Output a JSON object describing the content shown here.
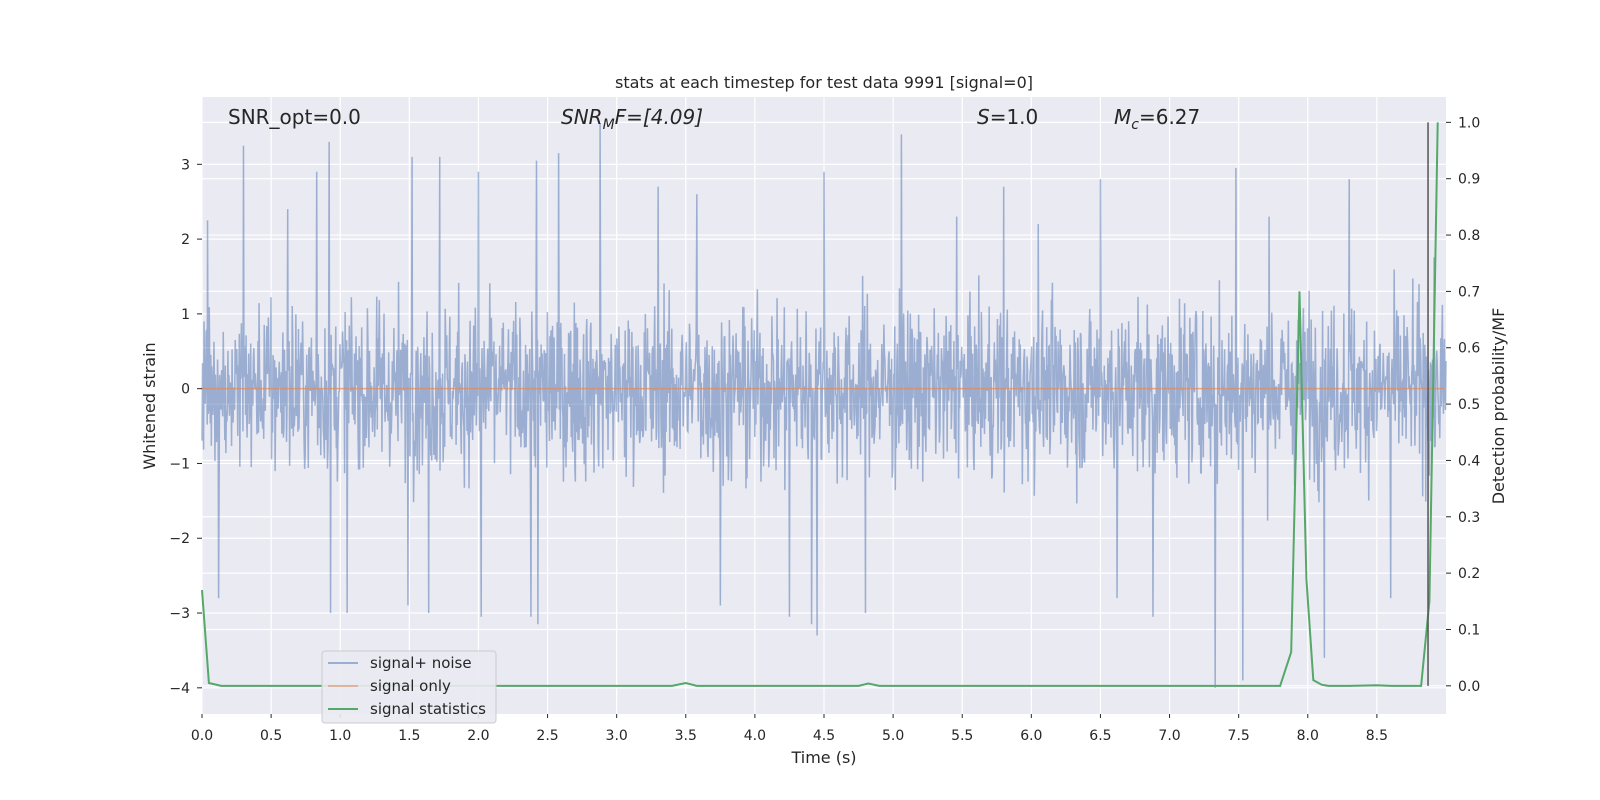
{
  "chart_data": {
    "type": "line",
    "title": "stats at each timestep for test data 9991 [signal=0]",
    "xlabel": "Time (s)",
    "ylabel": "Whitened strain",
    "y2label": "Detection probability/MF",
    "xlim": [
      0,
      9.0
    ],
    "ylim": [
      -4.35,
      3.9
    ],
    "y2lim": [
      -0.05,
      1.045
    ],
    "x_ticks": [
      0.0,
      0.5,
      1.0,
      1.5,
      2.0,
      2.5,
      3.0,
      3.5,
      4.0,
      4.5,
      5.0,
      5.5,
      6.0,
      6.5,
      7.0,
      7.5,
      8.0,
      8.5
    ],
    "x_tick_labels": [
      "0.0",
      "0.5",
      "1.0",
      "1.5",
      "2.0",
      "2.5",
      "3.0",
      "3.5",
      "4.0",
      "4.5",
      "5.0",
      "5.5",
      "6.0",
      "6.5",
      "7.0",
      "7.5",
      "8.0",
      "8.5"
    ],
    "y_ticks": [
      3,
      2,
      1,
      0,
      -1,
      -2,
      -3,
      -4
    ],
    "y_tick_labels": [
      "3",
      "2",
      "1",
      "0",
      "−1",
      "−2",
      "−3",
      "−4"
    ],
    "y2_ticks": [
      1.0,
      0.9,
      0.8,
      0.7,
      0.6,
      0.5,
      0.4,
      0.3,
      0.2,
      0.1,
      0.0
    ],
    "y2_tick_labels": [
      "1.0",
      "0.9",
      "0.8",
      "0.7",
      "0.6",
      "0.5",
      "0.4",
      "0.3",
      "0.2",
      "0.1",
      "0.0"
    ],
    "annotations": {
      "snr_opt": "SNR_opt=0.0",
      "snr_mf_main": "SNR",
      "snr_mf_sub": "M",
      "snr_mf_rest": "F=[4.09]",
      "s_main": "S",
      "s_rest": "=1.0",
      "mc_main": "M",
      "mc_sub": "c",
      "mc_rest": "=6.27"
    },
    "legend": {
      "position": "lower-left",
      "entries": [
        "signal+ noise",
        "signal only",
        "signal statistics"
      ]
    },
    "series": [
      {
        "name": "signal+ noise",
        "color": "#4c72b0",
        "kind": "dense-noise",
        "envelope_typical": [
          -1.7,
          1.7
        ],
        "spikes": [
          [
            0.04,
            2.25
          ],
          [
            0.3,
            3.25
          ],
          [
            0.62,
            2.4
          ],
          [
            0.83,
            2.9
          ],
          [
            0.92,
            3.3
          ],
          [
            1.52,
            3.1
          ],
          [
            1.72,
            3.1
          ],
          [
            2.0,
            2.9
          ],
          [
            2.42,
            3.05
          ],
          [
            2.58,
            3.15
          ],
          [
            2.88,
            3.55
          ],
          [
            3.3,
            2.7
          ],
          [
            3.58,
            2.6
          ],
          [
            4.5,
            2.9
          ],
          [
            5.06,
            3.4
          ],
          [
            5.46,
            2.3
          ],
          [
            5.8,
            2.7
          ],
          [
            6.05,
            2.2
          ],
          [
            6.5,
            2.8
          ],
          [
            7.48,
            2.95
          ],
          [
            7.72,
            2.3
          ],
          [
            8.3,
            2.8
          ],
          [
            0.12,
            -2.8
          ],
          [
            0.93,
            -3.0
          ],
          [
            1.05,
            -3.0
          ],
          [
            1.49,
            -2.9
          ],
          [
            1.64,
            -3.0
          ],
          [
            2.02,
            -3.05
          ],
          [
            2.38,
            -3.05
          ],
          [
            2.43,
            -3.15
          ],
          [
            3.75,
            -2.9
          ],
          [
            4.25,
            -3.05
          ],
          [
            4.41,
            -3.15
          ],
          [
            4.45,
            -3.3
          ],
          [
            4.8,
            -3.0
          ],
          [
            6.62,
            -2.8
          ],
          [
            6.88,
            -3.05
          ],
          [
            7.33,
            -4.0
          ],
          [
            7.53,
            -3.9
          ],
          [
            8.12,
            -3.6
          ],
          [
            8.6,
            -2.8
          ]
        ]
      },
      {
        "name": "signal only",
        "color": "#dd8452",
        "x": [
          0.0,
          8.99
        ],
        "y": [
          0.0,
          0.0
        ]
      },
      {
        "name": "signal statistics",
        "color": "#55a868",
        "x": [
          0.0,
          0.05,
          0.14,
          0.5,
          1.0,
          2.0,
          3.0,
          3.4,
          3.5,
          3.58,
          4.0,
          4.75,
          4.82,
          4.9,
          5.5,
          6.5,
          7.0,
          7.5,
          7.8,
          7.88,
          7.94,
          7.99,
          8.04,
          8.1,
          8.15,
          8.3,
          8.5,
          8.6,
          8.82,
          8.88,
          8.94
        ],
        "y": [
          0.17,
          0.005,
          0.0,
          0.0,
          0.0,
          0.0,
          0.0,
          0.0,
          0.005,
          0.0,
          0.0,
          0.0,
          0.004,
          0.0,
          0.0,
          0.0,
          0.0,
          0.0,
          0.0,
          0.06,
          0.7,
          0.19,
          0.01,
          0.002,
          0.0,
          0.0,
          0.001,
          0.0,
          0.0,
          0.15,
          1.0
        ]
      }
    ],
    "vline_x": 8.87
  }
}
